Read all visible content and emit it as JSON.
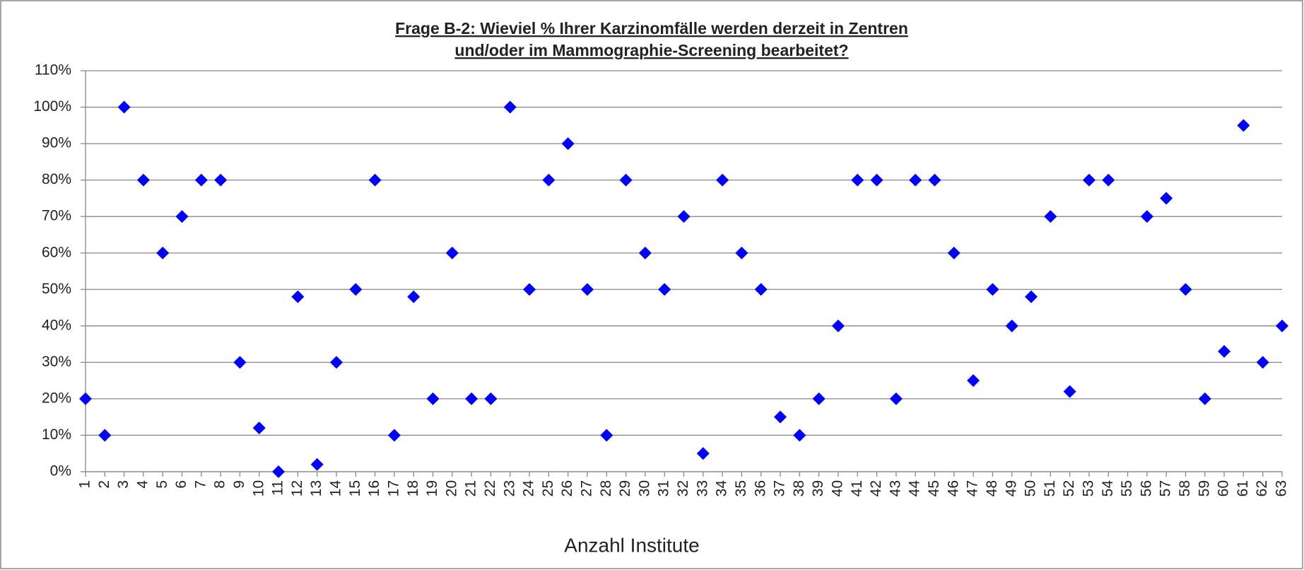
{
  "chart_data": {
    "type": "scatter",
    "title": [
      "Frage B-2:  Wieviel % Ihrer Karzinomfälle werden derzeit in Zentren",
      "und/oder im Mammographie-Screening bearbeitet?"
    ],
    "x_label": "Anzahl Institute",
    "categories": [
      1,
      2,
      3,
      4,
      5,
      6,
      7,
      8,
      9,
      10,
      11,
      12,
      13,
      14,
      15,
      16,
      17,
      18,
      19,
      20,
      21,
      22,
      23,
      24,
      25,
      26,
      27,
      28,
      29,
      30,
      31,
      32,
      33,
      34,
      35,
      36,
      37,
      38,
      39,
      40,
      41,
      42,
      43,
      44,
      45,
      46,
      47,
      48,
      49,
      50,
      51,
      52,
      53,
      54,
      55,
      56,
      57,
      58,
      59,
      60,
      61,
      62,
      63
    ],
    "values": [
      20,
      10,
      100,
      80,
      60,
      70,
      80,
      80,
      30,
      12,
      0,
      48,
      2,
      30,
      50,
      80,
      10,
      48,
      20,
      60,
      20,
      20,
      100,
      50,
      80,
      90,
      50,
      10,
      80,
      60,
      50,
      70,
      5,
      80,
      60,
      50,
      15,
      10,
      20,
      40,
      80,
      80,
      20,
      80,
      80,
      60,
      25,
      50,
      40,
      48,
      70,
      22,
      80,
      80,
      null,
      70,
      75,
      50,
      20,
      33,
      95,
      30,
      40
    ],
    "color": "#0000ff",
    "ylim": [
      0,
      110
    ],
    "yticks": [
      {
        "value": 0,
        "label": "0%"
      },
      {
        "value": 10,
        "label": "10%"
      },
      {
        "value": 20,
        "label": "20%"
      },
      {
        "value": 30,
        "label": "30%"
      },
      {
        "value": 40,
        "label": "40%"
      },
      {
        "value": 50,
        "label": "50%"
      },
      {
        "value": 60,
        "label": "60%"
      },
      {
        "value": 70,
        "label": "70%"
      },
      {
        "value": 80,
        "label": "80%"
      },
      {
        "value": 90,
        "label": "90%"
      },
      {
        "value": 100,
        "label": "100%"
      },
      {
        "value": 110,
        "label": "110%"
      }
    ],
    "grid": true
  }
}
